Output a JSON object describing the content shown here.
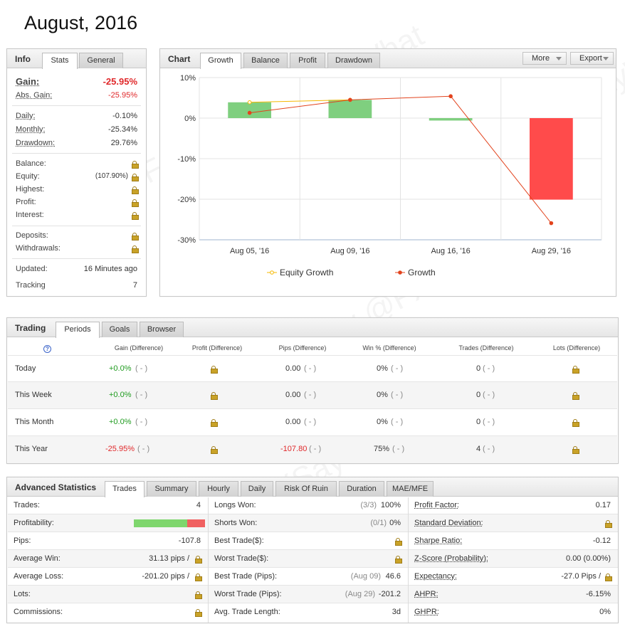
{
  "page_title": "August, 2016",
  "info": {
    "title": "Info",
    "tabs": [
      "Stats",
      "General"
    ],
    "gain_label": "Gain:",
    "gain_value": "-25.95%",
    "abs_gain_label": "Abs. Gain:",
    "abs_gain_value": "-25.95%",
    "daily_label": "Daily:",
    "daily_value": "-0.10%",
    "monthly_label": "Monthly:",
    "monthly_value": "-25.34%",
    "drawdown_label": "Drawdown:",
    "drawdown_value": "29.76%",
    "balance_label": "Balance:",
    "equity_label": "Equity:",
    "equity_value": "(107.90%)",
    "highest_label": "Highest:",
    "profit_label": "Profit:",
    "interest_label": "Interest:",
    "deposits_label": "Deposits:",
    "withdrawals_label": "Withdrawals:",
    "updated_label": "Updated:",
    "updated_value": "16 Minutes ago",
    "tracking_label": "Tracking",
    "tracking_value": "7"
  },
  "chart_panel": {
    "title": "Chart",
    "tabs": [
      "Growth",
      "Balance",
      "Profit",
      "Drawdown"
    ],
    "more_label": "More",
    "export_label": "Export"
  },
  "chart_data": {
    "type": "bar",
    "categories": [
      "Aug 05, '16",
      "Aug 09, '16",
      "Aug 16, '16",
      "Aug 29, '16"
    ],
    "ylim": [
      -30,
      10
    ],
    "yticks": [
      10,
      0,
      -10,
      -20,
      -30
    ],
    "ytick_labels": [
      "10%",
      "0%",
      "-10%",
      "-20%",
      "-30%"
    ],
    "bar_values": [
      3.9,
      4.5,
      -0.6,
      -20.1
    ],
    "bar_colors": [
      "#7fcf7f",
      "#7fcf7f",
      "#7fcf7f",
      "#ff4b4b"
    ],
    "series": [
      {
        "name": "Equity Growth",
        "color": "#f5b800",
        "values": [
          3.9,
          4.5,
          null,
          null
        ]
      },
      {
        "name": "Growth",
        "color": "#e2431d",
        "values": [
          1.3,
          4.5,
          5.4,
          -25.9
        ]
      }
    ],
    "legend_position": "bottom",
    "grid": true
  },
  "trading": {
    "title": "Trading",
    "tabs": [
      "Periods",
      "Goals",
      "Browser"
    ],
    "help_icon": "?",
    "headers": [
      "Gain (Difference)",
      "Profit (Difference)",
      "Pips (Difference)",
      "Win % (Difference)",
      "Trades (Difference)",
      "Lots (Difference)"
    ],
    "rows": [
      {
        "period": "Today",
        "gain": "+0.0%",
        "gain_diff": "( - )",
        "pips": "0.00",
        "pips_diff": "( - )",
        "win": "0%",
        "win_diff": "( - )",
        "trades": "0",
        "trades_diff": "( - )"
      },
      {
        "period": "This Week",
        "gain": "+0.0%",
        "gain_diff": "( - )",
        "pips": "0.00",
        "pips_diff": "( - )",
        "win": "0%",
        "win_diff": "( - )",
        "trades": "0",
        "trades_diff": "( - )"
      },
      {
        "period": "This Month",
        "gain": "+0.0%",
        "gain_diff": "( - )",
        "pips": "0.00",
        "pips_diff": "( - )",
        "win": "0%",
        "win_diff": "( - )",
        "trades": "0",
        "trades_diff": "( - )"
      },
      {
        "period": "This Year",
        "gain": "-25.95%",
        "gain_diff": "( - )",
        "pips": "-107.80",
        "pips_diff": "( - )",
        "win": "75%",
        "win_diff": "( - )",
        "trades": "4",
        "trades_diff": "( - )"
      }
    ]
  },
  "advanced": {
    "title": "Advanced Statistics",
    "tabs": [
      "Trades",
      "Summary",
      "Hourly",
      "Daily",
      "Risk Of Ruin",
      "Duration",
      "MAE/MFE"
    ],
    "col1": {
      "trades_label": "Trades:",
      "trades_value": "4",
      "profitability_label": "Profitability:",
      "profitability_win_fraction": 0.75,
      "pips_label": "Pips:",
      "pips_value": "-107.8",
      "avg_win_label": "Average Win:",
      "avg_win_value": "31.13 pips /",
      "avg_loss_label": "Average Loss:",
      "avg_loss_value": "-201.20 pips /",
      "lots_label": "Lots:",
      "commissions_label": "Commissions:"
    },
    "col2": {
      "longs_won_label": "Longs Won:",
      "longs_won_ratio": "(3/3)",
      "longs_won_value": "100%",
      "shorts_won_label": "Shorts Won:",
      "shorts_won_ratio": "(0/1)",
      "shorts_won_value": "0%",
      "best_trade_label": "Best Trade($):",
      "worst_trade_label": "Worst Trade($):",
      "best_pips_label": "Best Trade (Pips):",
      "best_pips_date": "(Aug 09)",
      "best_pips_value": "46.6",
      "worst_pips_label": "Worst Trade (Pips):",
      "worst_pips_date": "(Aug 29)",
      "worst_pips_value": "-201.2",
      "avg_len_label": "Avg. Trade Length:",
      "avg_len_value": "3d"
    },
    "col3": {
      "profit_factor_label": "Profit Factor:",
      "profit_factor_value": "0.17",
      "std_dev_label": "Standard Deviation:",
      "sharpe_label": "Sharpe Ratio:",
      "sharpe_value": "-0.12",
      "zscore_label": "Z-Score (Probability):",
      "zscore_value": "0.00 (0.00%)",
      "expectancy_label": "Expectancy:",
      "expectancy_value": "-27.0 Pips /",
      "ahpr_label": "AHPR:",
      "ahpr_value": "-6.15%",
      "ghpr_label": "GHPR:",
      "ghpr_value": "0%"
    }
  },
  "watermark": "Forex Factory @FXSayWhat"
}
